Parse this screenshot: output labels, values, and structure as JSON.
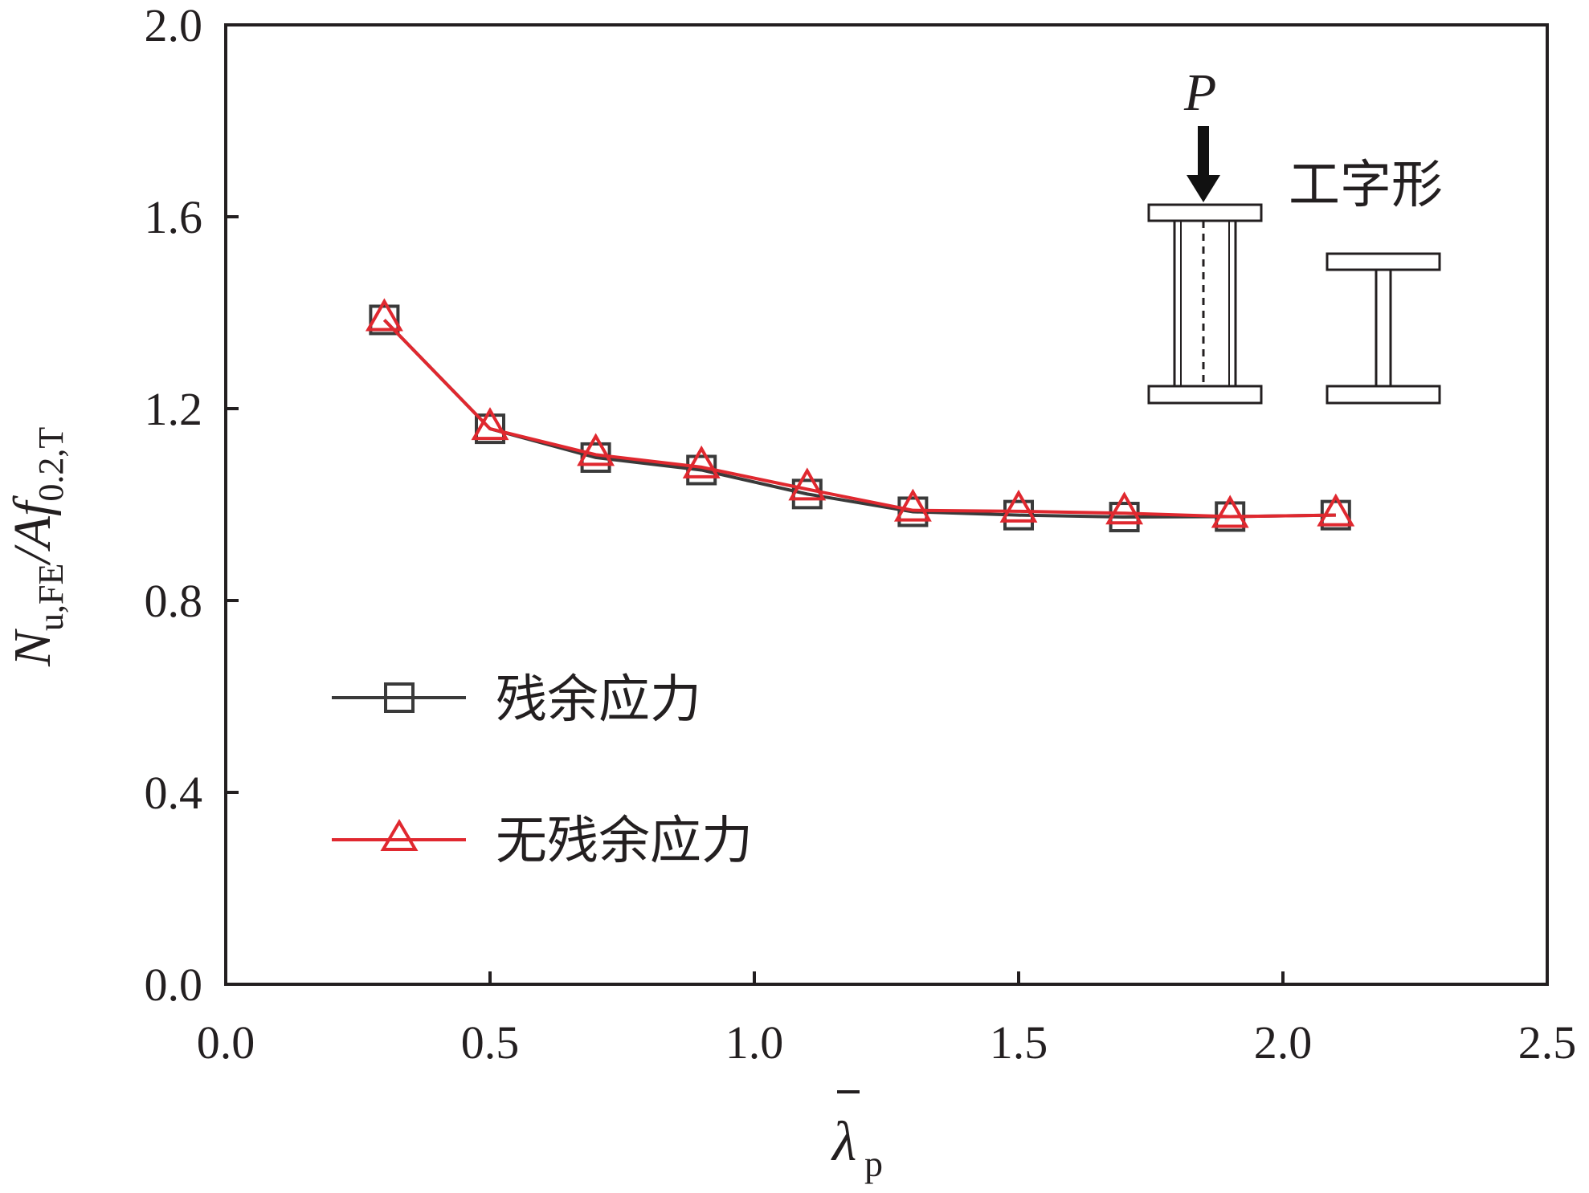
{
  "chart_data": {
    "type": "line",
    "xlabel": {
      "symbol": "λ",
      "subscript": "p"
    },
    "ylabel": {
      "main": "N",
      "sub1": "u,FE",
      "mid": "/Af",
      "sub2": "0.2,T"
    },
    "xlim": [
      0.0,
      2.5
    ],
    "ylim": [
      0.0,
      2.0
    ],
    "xticks": [
      "0.0",
      "0.5",
      "1.0",
      "1.5",
      "2.0",
      "2.5"
    ],
    "yticks": [
      "0.0",
      "0.4",
      "0.8",
      "1.2",
      "1.6",
      "2.0"
    ],
    "grid": false,
    "legend_position": "center-left",
    "x": [
      0.3,
      0.5,
      0.7,
      0.9,
      1.1,
      1.3,
      1.5,
      1.7,
      1.9,
      2.1
    ],
    "series": [
      {
        "name": "残余应力",
        "marker": "square",
        "color": "#3a3a3a",
        "values": [
          1.385,
          1.158,
          1.098,
          1.072,
          1.022,
          0.985,
          0.978,
          0.974,
          0.975,
          0.978
        ]
      },
      {
        "name": "无残余应力",
        "marker": "triangle",
        "color": "#e0282f",
        "values": [
          1.385,
          1.158,
          1.104,
          1.078,
          1.032,
          0.988,
          0.986,
          0.982,
          0.975,
          0.978
        ]
      }
    ],
    "annotations": {
      "load_label": "P",
      "section_label": "工字形"
    }
  }
}
